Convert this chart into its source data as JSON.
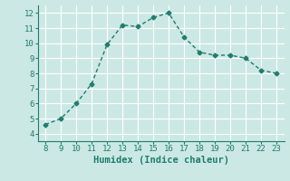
{
  "x": [
    8,
    9,
    10,
    11,
    12,
    13,
    14,
    15,
    16,
    17,
    18,
    19,
    20,
    21,
    22,
    23
  ],
  "y": [
    4.6,
    5.0,
    6.0,
    7.3,
    9.9,
    11.2,
    11.1,
    11.7,
    12.0,
    10.4,
    9.4,
    9.2,
    9.2,
    9.0,
    8.2,
    8.0
  ],
  "line_color": "#1e7d6e",
  "marker": "D",
  "marker_size": 2.5,
  "linewidth": 1.0,
  "xlabel": "Humidex (Indice chaleur)",
  "xlim": [
    7.5,
    23.5
  ],
  "ylim": [
    3.5,
    12.5
  ],
  "xticks": [
    8,
    9,
    10,
    11,
    12,
    13,
    14,
    15,
    16,
    17,
    18,
    19,
    20,
    21,
    22,
    23
  ],
  "yticks": [
    4,
    5,
    6,
    7,
    8,
    9,
    10,
    11,
    12
  ],
  "bg_color": "#cce8e4",
  "grid_color": "#ffffff",
  "tick_fontsize": 6.5,
  "xlabel_fontsize": 7.5
}
